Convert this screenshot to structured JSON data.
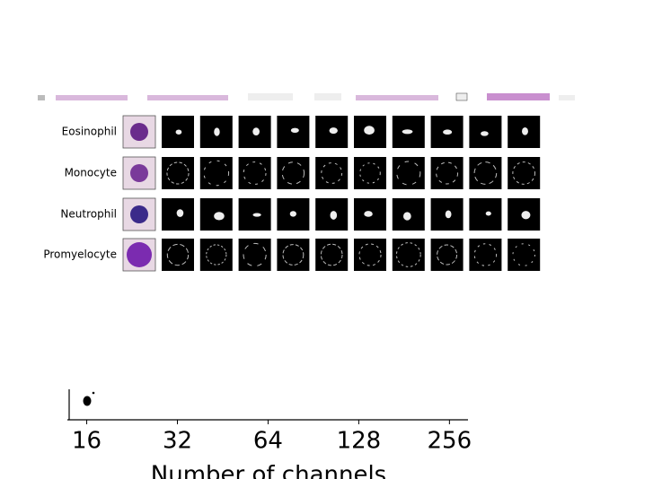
{
  "rows": [
    "Eosinophil",
    "Monocyte",
    "Neutrophil",
    "Promyelocyte"
  ],
  "axis": {
    "ticks": [
      16,
      32,
      64,
      128,
      256
    ],
    "label": "Number of channels",
    "xlim": [
      13.8,
      295
    ],
    "log_base": 2
  }
}
